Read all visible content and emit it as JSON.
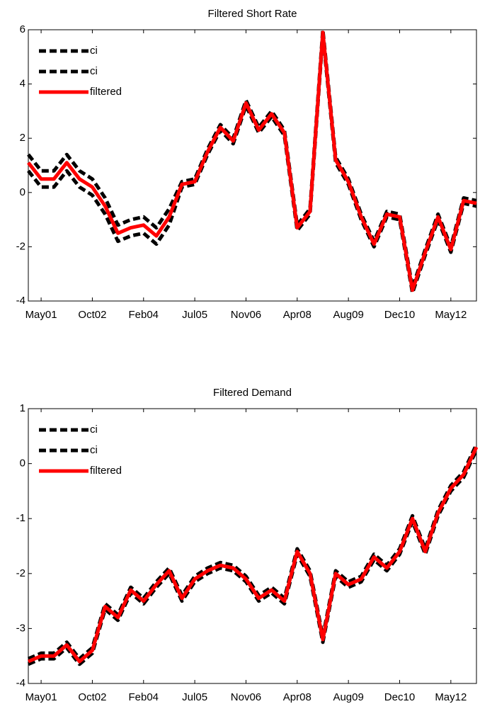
{
  "chart_data": [
    {
      "type": "line",
      "title": "Filtered Short Rate",
      "categories": [
        null,
        "May01",
        null,
        null,
        null,
        "Oct02",
        null,
        null,
        null,
        "Feb04",
        null,
        null,
        null,
        "Jul05",
        null,
        null,
        null,
        "Nov06",
        null,
        null,
        null,
        "Apr08",
        null,
        null,
        null,
        "Aug09",
        null,
        null,
        null,
        "Dec10",
        null,
        null,
        null,
        "May12",
        null,
        null
      ],
      "series": [
        {
          "name": "ci",
          "color": "#000000",
          "dashed": true,
          "values": [
            1.4,
            0.8,
            0.8,
            1.4,
            0.8,
            0.5,
            -0.2,
            -1.2,
            -1.0,
            -0.9,
            -1.3,
            -0.6,
            0.4,
            0.5,
            1.6,
            2.5,
            2.0,
            3.4,
            2.4,
            3.0,
            2.3,
            -1.2,
            -0.6,
            6.0,
            1.3,
            0.5,
            -0.8,
            -1.8,
            -0.7,
            -0.8,
            -3.5,
            -2.1,
            -0.8,
            -2.0,
            -0.2,
            -0.3
          ]
        },
        {
          "name": "ci",
          "color": "#000000",
          "dashed": true,
          "values": [
            0.8,
            0.2,
            0.2,
            0.8,
            0.2,
            -0.1,
            -0.8,
            -1.8,
            -1.6,
            -1.5,
            -1.9,
            -1.2,
            0.2,
            0.3,
            1.4,
            2.3,
            1.8,
            3.2,
            2.2,
            2.8,
            2.1,
            -1.4,
            -0.8,
            5.8,
            1.1,
            0.3,
            -1.0,
            -2.0,
            -0.9,
            -1.0,
            -3.7,
            -2.3,
            -1.0,
            -2.2,
            -0.4,
            -0.5
          ]
        },
        {
          "name": "filtered",
          "color": "#ff0000",
          "dashed": false,
          "values": [
            1.1,
            0.5,
            0.5,
            1.1,
            0.5,
            0.2,
            -0.5,
            -1.5,
            -1.3,
            -1.2,
            -1.6,
            -0.9,
            0.3,
            0.4,
            1.5,
            2.4,
            1.9,
            3.3,
            2.3,
            2.9,
            2.2,
            -1.3,
            -0.7,
            5.9,
            1.2,
            0.4,
            -0.9,
            -1.9,
            -0.8,
            -0.9,
            -3.6,
            -2.2,
            -0.9,
            -2.1,
            -0.3,
            -0.4
          ]
        }
      ],
      "ylim": [
        -4,
        6
      ],
      "yticks": [
        -4,
        -2,
        0,
        2,
        4,
        6
      ],
      "legend": "upper left"
    },
    {
      "type": "line",
      "title": "Filtered Demand",
      "categories": [
        null,
        "May01",
        null,
        null,
        null,
        "Oct02",
        null,
        null,
        null,
        "Feb04",
        null,
        null,
        null,
        "Jul05",
        null,
        null,
        null,
        "Nov06",
        null,
        null,
        null,
        "Apr08",
        null,
        null,
        null,
        "Aug09",
        null,
        null,
        null,
        "Dec10",
        null,
        null,
        null,
        "May12",
        null,
        null
      ],
      "series": [
        {
          "name": "ci",
          "color": "#000000",
          "dashed": true,
          "values": [
            -3.55,
            -3.45,
            -3.45,
            -3.25,
            -3.55,
            -3.35,
            -2.55,
            -2.75,
            -2.25,
            -2.45,
            -2.15,
            -1.9,
            -2.4,
            -2.05,
            -1.9,
            -1.8,
            -1.85,
            -2.05,
            -2.4,
            -2.25,
            -2.45,
            -1.55,
            -1.95,
            -3.15,
            -1.95,
            -2.15,
            -2.05,
            -1.65,
            -1.85,
            -1.55,
            -0.95,
            -1.55,
            -0.85,
            -0.4,
            -0.15,
            0.35
          ]
        },
        {
          "name": "ci",
          "color": "#000000",
          "dashed": true,
          "values": [
            -3.65,
            -3.55,
            -3.55,
            -3.35,
            -3.65,
            -3.45,
            -2.65,
            -2.85,
            -2.35,
            -2.55,
            -2.25,
            -2.0,
            -2.5,
            -2.15,
            -2.0,
            -1.9,
            -1.95,
            -2.15,
            -2.5,
            -2.35,
            -2.55,
            -1.65,
            -2.05,
            -3.25,
            -2.05,
            -2.25,
            -2.15,
            -1.75,
            -1.95,
            -1.65,
            -1.05,
            -1.65,
            -0.95,
            -0.5,
            -0.25,
            0.25
          ]
        },
        {
          "name": "filtered",
          "color": "#ff0000",
          "dashed": false,
          "values": [
            -3.6,
            -3.5,
            -3.5,
            -3.3,
            -3.6,
            -3.4,
            -2.6,
            -2.8,
            -2.3,
            -2.5,
            -2.2,
            -1.95,
            -2.45,
            -2.1,
            -1.95,
            -1.85,
            -1.9,
            -2.1,
            -2.45,
            -2.3,
            -2.5,
            -1.6,
            -2.0,
            -3.2,
            -2.0,
            -2.2,
            -2.1,
            -1.7,
            -1.9,
            -1.6,
            -1.0,
            -1.6,
            -0.9,
            -0.45,
            -0.2,
            0.3
          ]
        }
      ],
      "ylim": [
        -4,
        1
      ],
      "yticks": [
        -4,
        -3,
        -2,
        -1,
        0,
        1
      ],
      "legend": "upper left"
    }
  ]
}
